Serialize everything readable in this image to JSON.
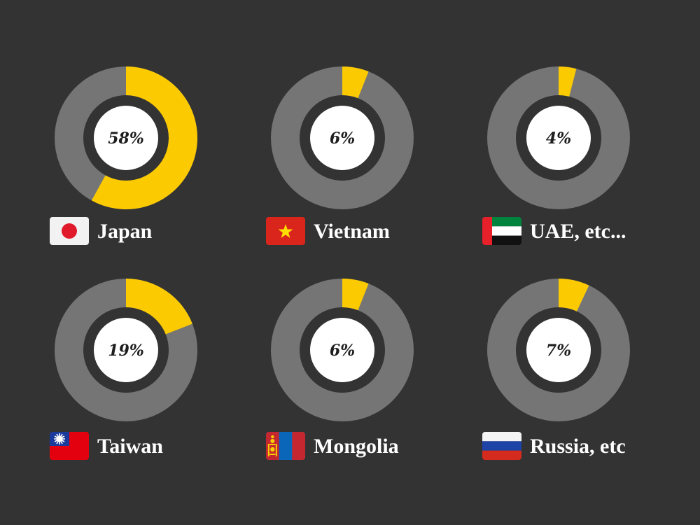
{
  "colors": {
    "background": "#333333",
    "track": "#757575",
    "accent": "#fcca00",
    "center": "#ffffff",
    "value_text": "#1e1e1e",
    "label_text": "#ffffff"
  },
  "chart_data": {
    "type": "donut",
    "title": "",
    "grid": false,
    "legend": "none",
    "items": [
      {
        "country": "Japan",
        "value": 58,
        "label": "58%",
        "flag": "flag-japan"
      },
      {
        "country": "Vietnam",
        "value": 6,
        "label": "6%",
        "flag": "flag-vietnam"
      },
      {
        "country": "UAE, etc...",
        "value": 4,
        "label": "4%",
        "flag": "flag-uae"
      },
      {
        "country": "Taiwan",
        "value": 19,
        "label": "19%",
        "flag": "flag-taiwan"
      },
      {
        "country": "Mongolia",
        "value": 6,
        "label": "6%",
        "flag": "flag-mongolia"
      },
      {
        "country": "Russia, etc",
        "value": 7,
        "label": "7%",
        "flag": "flag-russia"
      }
    ]
  }
}
